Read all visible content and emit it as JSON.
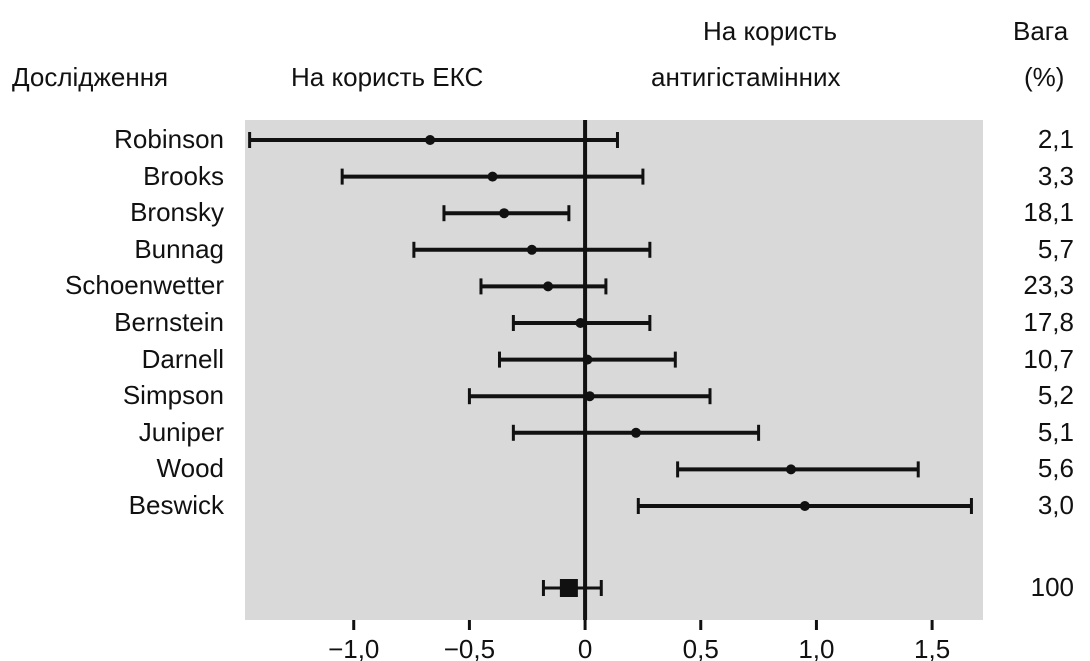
{
  "headers": {
    "study": "Дослідження",
    "favors_left": "На користь ЕКС",
    "favors_right_line1": "На користь",
    "favors_right_line2": "антигістамінних",
    "weight_line1": "Вага",
    "weight_line2": "(%)"
  },
  "chart_data": {
    "type": "forest",
    "x_ticks": [
      "−1,0",
      "−0,5",
      "0",
      "0,5",
      "1,0",
      "1,5"
    ],
    "x_tick_values": [
      -1.0,
      -0.5,
      0,
      0.5,
      1.0,
      1.5
    ],
    "xlim": [
      -1.47,
      1.72
    ],
    "reference_line": 0,
    "studies": [
      {
        "name": "Robinson",
        "estimate": -0.67,
        "lower": -1.45,
        "upper": 0.14,
        "weight": "2,1"
      },
      {
        "name": "Brooks",
        "estimate": -0.4,
        "lower": -1.05,
        "upper": 0.25,
        "weight": "3,3"
      },
      {
        "name": "Bronsky",
        "estimate": -0.35,
        "lower": -0.61,
        "upper": -0.07,
        "weight": "18,1"
      },
      {
        "name": "Bunnag",
        "estimate": -0.23,
        "lower": -0.74,
        "upper": 0.28,
        "weight": "5,7"
      },
      {
        "name": "Schoenwetter",
        "estimate": -0.16,
        "lower": -0.45,
        "upper": 0.09,
        "weight": "23,3"
      },
      {
        "name": "Bernstein",
        "estimate": -0.02,
        "lower": -0.31,
        "upper": 0.28,
        "weight": "17,8"
      },
      {
        "name": "Darnell",
        "estimate": 0.01,
        "lower": -0.37,
        "upper": 0.39,
        "weight": "10,7"
      },
      {
        "name": "Simpson",
        "estimate": 0.02,
        "lower": -0.5,
        "upper": 0.54,
        "weight": "5,2"
      },
      {
        "name": "Juniper",
        "estimate": 0.22,
        "lower": -0.31,
        "upper": 0.75,
        "weight": "5,1"
      },
      {
        "name": "Wood",
        "estimate": 0.89,
        "lower": 0.4,
        "upper": 1.44,
        "weight": "5,6"
      },
      {
        "name": "Beswick",
        "estimate": 0.95,
        "lower": 0.23,
        "upper": 1.67,
        "weight": "3,0"
      }
    ],
    "pooled": {
      "estimate": -0.07,
      "lower": -0.18,
      "upper": 0.07,
      "weight": "100"
    },
    "colors": {
      "background_panel": "#d9d9d9",
      "marks": "#111111"
    }
  }
}
